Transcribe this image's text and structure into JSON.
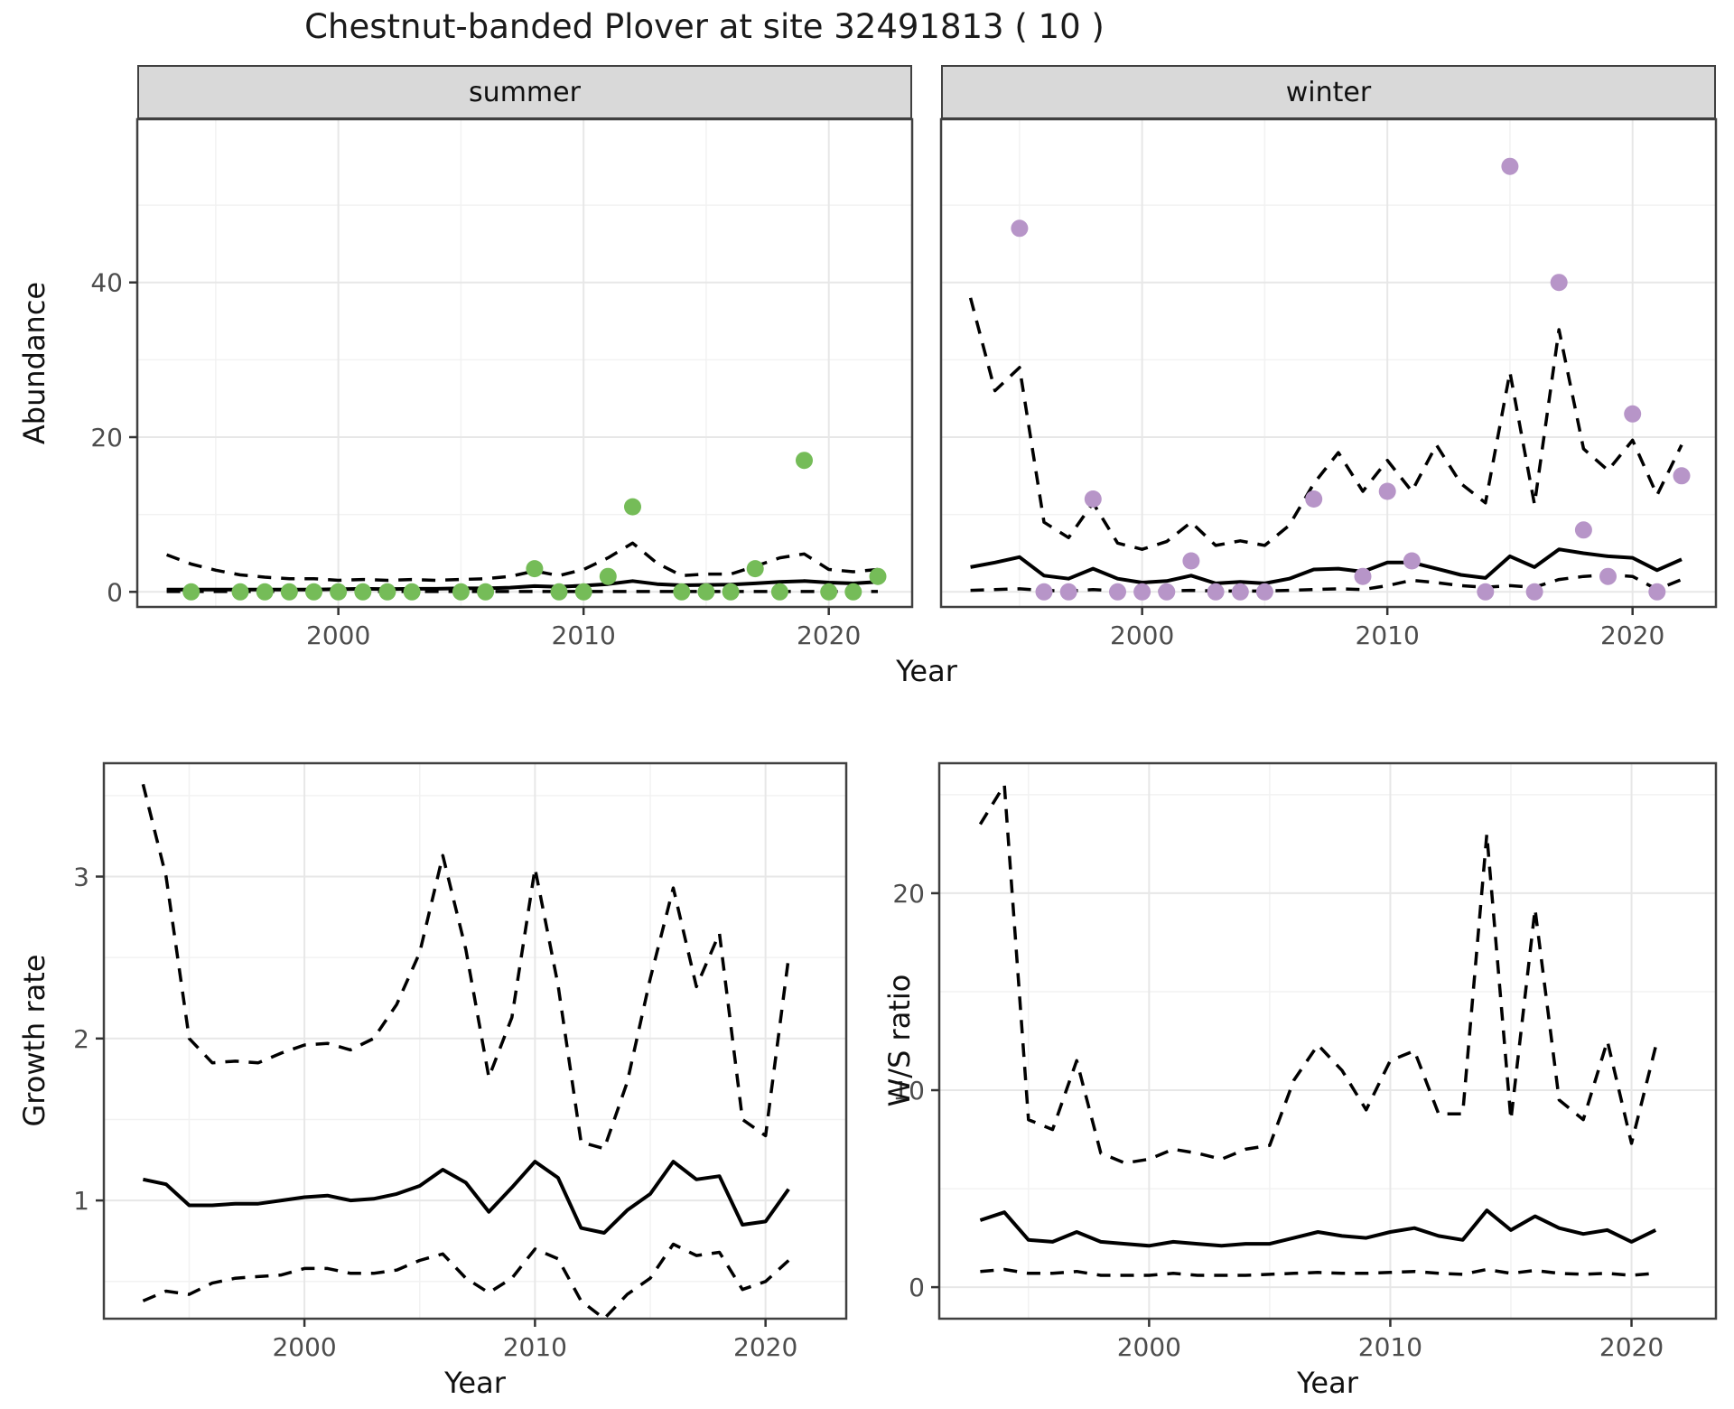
{
  "title": "Chestnut-banded Plover at site 32491813 ( 10 )",
  "facets": {
    "summer_label": "summer",
    "winter_label": "winter"
  },
  "axis_titles": {
    "top_x": "Year",
    "top_y": "Abundance",
    "bottom_left_y": "Growth rate",
    "bottom_left_x": "Year",
    "bottom_right_y": "W/S ratio",
    "bottom_right_x": "Year"
  },
  "colors": {
    "summer_point": "#75BC58",
    "winter_point": "#B795C8",
    "line": "#000000",
    "strip_bg": "#D9D9D9",
    "panel_border": "#404040",
    "grid_major": "#E7E7E7",
    "grid_minor": "#F2F2F2",
    "tick_label": "#4D4D4D",
    "tick_mark": "#333333"
  },
  "chart_data": [
    {
      "id": "abundance-summer",
      "type": "scatter",
      "facet": "summer",
      "xlabel": "Year",
      "ylabel": "Abundance",
      "x_domain": [
        1991.8,
        2023.4
      ],
      "y_domain": [
        -1.95,
        61.1
      ],
      "x_ticks": [
        2000,
        2010,
        2020
      ],
      "x_minor": [
        1995,
        2005,
        2015
      ],
      "y_ticks": [
        0,
        20,
        40
      ],
      "y_minor": [
        10,
        30,
        50
      ],
      "y_tick_labels": [
        "0",
        "20",
        "40"
      ],
      "x_tick_labels": [
        "2000",
        "2010",
        "2020"
      ],
      "y_tick_side": "left",
      "point_color": "#75BC58",
      "years": [
        1993,
        1994,
        1995,
        1996,
        1997,
        1998,
        1999,
        2000,
        2001,
        2002,
        2003,
        2004,
        2005,
        2006,
        2007,
        2008,
        2009,
        2010,
        2011,
        2012,
        2013,
        2014,
        2015,
        2016,
        2017,
        2018,
        2019,
        2020,
        2021,
        2022
      ],
      "mean": [
        0.3,
        0.3,
        0.3,
        0.3,
        0.3,
        0.3,
        0.3,
        0.35,
        0.4,
        0.35,
        0.4,
        0.4,
        0.45,
        0.45,
        0.55,
        0.75,
        0.65,
        0.8,
        1.0,
        1.4,
        1.0,
        0.85,
        0.9,
        0.95,
        1.1,
        1.3,
        1.4,
        1.2,
        1.1,
        1.3
      ],
      "upper": [
        4.8,
        3.6,
        2.8,
        2.2,
        1.9,
        1.7,
        1.7,
        1.5,
        1.6,
        1.5,
        1.6,
        1.5,
        1.6,
        1.7,
        2.0,
        2.7,
        2.1,
        2.9,
        4.4,
        6.3,
        3.7,
        2.1,
        2.3,
        2.3,
        3.3,
        4.4,
        4.9,
        2.9,
        2.6,
        2.9
      ],
      "lower": [
        0.05,
        0.05,
        0.05,
        0.05,
        0.05,
        0.05,
        0.05,
        0.05,
        0.05,
        0.05,
        0.05,
        0.05,
        0.05,
        0.05,
        0.05,
        0.05,
        0.05,
        0.05,
        0.05,
        0.05,
        0.05,
        0.05,
        0.05,
        0.05,
        0.05,
        0.05,
        0.05,
        0.05,
        0.05,
        0.05
      ],
      "points": [
        [
          1994,
          0
        ],
        [
          1996,
          0
        ],
        [
          1997,
          0
        ],
        [
          1998,
          0
        ],
        [
          1999,
          0
        ],
        [
          2000,
          0
        ],
        [
          2001,
          0
        ],
        [
          2002,
          0
        ],
        [
          2003,
          0
        ],
        [
          2005,
          0
        ],
        [
          2006,
          0
        ],
        [
          2008,
          3
        ],
        [
          2009,
          0
        ],
        [
          2010,
          0
        ],
        [
          2011,
          2
        ],
        [
          2012,
          11
        ],
        [
          2014,
          0
        ],
        [
          2015,
          0
        ],
        [
          2016,
          0
        ],
        [
          2017,
          3
        ],
        [
          2018,
          0
        ],
        [
          2019,
          17
        ],
        [
          2020,
          0
        ],
        [
          2021,
          0
        ],
        [
          2022,
          2
        ]
      ]
    },
    {
      "id": "abundance-winter",
      "type": "scatter",
      "facet": "winter",
      "xlabel": "Year",
      "ylabel": "Abundance",
      "x_domain": [
        1991.8,
        2023.4
      ],
      "y_domain": [
        -1.95,
        61.1
      ],
      "x_ticks": [
        2000,
        2010,
        2020
      ],
      "x_minor": [
        1995,
        2005,
        2015
      ],
      "y_ticks": [
        0,
        20,
        40
      ],
      "y_minor": [
        10,
        30,
        50
      ],
      "y_tick_labels": [],
      "x_tick_labels": [
        "2000",
        "2010",
        "2020"
      ],
      "y_tick_side": "none",
      "point_color": "#B795C8",
      "years": [
        1993,
        1994,
        1995,
        1996,
        1997,
        1998,
        1999,
        2000,
        2001,
        2002,
        2003,
        2004,
        2005,
        2006,
        2007,
        2008,
        2009,
        2010,
        2011,
        2012,
        2013,
        2014,
        2015,
        2016,
        2017,
        2018,
        2019,
        2020,
        2021,
        2022
      ],
      "mean": [
        3.2,
        3.8,
        4.5,
        2.1,
        1.7,
        3.0,
        1.7,
        1.2,
        1.4,
        2.1,
        1.1,
        1.3,
        1.1,
        1.7,
        2.9,
        3.0,
        2.6,
        3.8,
        3.8,
        3.0,
        2.2,
        1.8,
        4.6,
        3.2,
        5.5,
        5.0,
        4.6,
        4.4,
        2.8,
        4.2
      ],
      "upper": [
        38,
        26,
        29,
        9,
        7,
        11.5,
        6.3,
        5.5,
        6.5,
        9,
        6,
        6.6,
        6,
        8.6,
        14,
        18,
        13,
        17,
        13,
        19,
        14,
        11.5,
        28.4,
        11.3,
        33.9,
        18.5,
        15.7,
        19.6,
        12.5,
        19
      ],
      "lower": [
        0.2,
        0.3,
        0.4,
        0.2,
        0.1,
        0.3,
        0.1,
        0.1,
        0.1,
        0.2,
        0.1,
        0.1,
        0.1,
        0.2,
        0.3,
        0.4,
        0.3,
        0.8,
        1.5,
        1.2,
        0.8,
        0.6,
        0.8,
        0.6,
        1.6,
        2.0,
        2.2,
        2.0,
        0.3,
        1.6
      ],
      "points": [
        [
          1995,
          47
        ],
        [
          1996,
          0
        ],
        [
          1997,
          0
        ],
        [
          1998,
          12
        ],
        [
          1999,
          0
        ],
        [
          2000,
          0
        ],
        [
          2001,
          0
        ],
        [
          2002,
          4
        ],
        [
          2003,
          0
        ],
        [
          2004,
          0
        ],
        [
          2005,
          0
        ],
        [
          2007,
          12
        ],
        [
          2009,
          2
        ],
        [
          2010,
          13
        ],
        [
          2011,
          4
        ],
        [
          2014,
          0
        ],
        [
          2015,
          55
        ],
        [
          2016,
          0
        ],
        [
          2017,
          40
        ],
        [
          2018,
          8
        ],
        [
          2019,
          2
        ],
        [
          2020,
          23
        ],
        [
          2021,
          0
        ],
        [
          2022,
          15
        ]
      ]
    },
    {
      "id": "growth-rate",
      "type": "line",
      "facet": null,
      "xlabel": "Year",
      "ylabel": "Growth rate",
      "x_domain": [
        1991.3,
        2023.5
      ],
      "y_domain": [
        0.27,
        3.7
      ],
      "x_ticks": [
        2000,
        2010,
        2020
      ],
      "x_minor": [
        1995,
        2005,
        2015
      ],
      "y_ticks": [
        1,
        2,
        3
      ],
      "y_minor": [
        0.5,
        1.5,
        2.5,
        3.5
      ],
      "y_tick_labels": [
        "1",
        "2",
        "3"
      ],
      "x_tick_labels": [
        "2000",
        "2010",
        "2020"
      ],
      "y_tick_side": "left",
      "point_color": null,
      "years": [
        1993,
        1994,
        1995,
        1996,
        1997,
        1998,
        1999,
        2000,
        2001,
        2002,
        2003,
        2004,
        2005,
        2006,
        2007,
        2008,
        2009,
        2010,
        2011,
        2012,
        2013,
        2014,
        2015,
        2016,
        2017,
        2018,
        2019,
        2020,
        2021
      ],
      "mean": [
        1.13,
        1.1,
        0.97,
        0.97,
        0.98,
        0.98,
        1.0,
        1.02,
        1.03,
        1.0,
        1.01,
        1.04,
        1.09,
        1.19,
        1.11,
        0.93,
        1.08,
        1.24,
        1.14,
        0.83,
        0.8,
        0.94,
        1.04,
        1.24,
        1.13,
        1.15,
        0.85,
        0.87,
        1.07
      ],
      "upper": [
        3.57,
        3.0,
        2.0,
        1.85,
        1.86,
        1.85,
        1.91,
        1.96,
        1.97,
        1.93,
        2.0,
        2.21,
        2.53,
        3.13,
        2.55,
        1.76,
        2.13,
        3.05,
        2.33,
        1.36,
        1.32,
        1.73,
        2.37,
        2.93,
        2.32,
        2.65,
        1.5,
        1.4,
        2.5
      ],
      "lower": [
        0.38,
        0.44,
        0.42,
        0.49,
        0.52,
        0.53,
        0.54,
        0.58,
        0.58,
        0.55,
        0.55,
        0.57,
        0.63,
        0.67,
        0.52,
        0.43,
        0.52,
        0.7,
        0.64,
        0.38,
        0.27,
        0.42,
        0.52,
        0.73,
        0.66,
        0.68,
        0.45,
        0.5,
        0.63
      ],
      "points": []
    },
    {
      "id": "ws-ratio",
      "type": "line",
      "facet": null,
      "xlabel": "Year",
      "ylabel": "W/S ratio",
      "x_domain": [
        1991.3,
        2023.5
      ],
      "y_domain": [
        -1.6,
        26.6
      ],
      "x_ticks": [
        2000,
        2010,
        2020
      ],
      "x_minor": [
        1995,
        2005,
        2015
      ],
      "y_ticks": [
        0,
        10,
        20
      ],
      "y_minor": [
        5,
        15,
        25
      ],
      "y_tick_labels": [
        "0",
        "10",
        "20"
      ],
      "x_tick_labels": [
        "2000",
        "2010",
        "2020"
      ],
      "y_tick_side": "left",
      "point_color": null,
      "years": [
        1993,
        1994,
        1995,
        1996,
        1997,
        1998,
        1999,
        2000,
        2001,
        2002,
        2003,
        2004,
        2005,
        2006,
        2007,
        2008,
        2009,
        2010,
        2011,
        2012,
        2013,
        2014,
        2015,
        2016,
        2017,
        2018,
        2019,
        2020,
        2021
      ],
      "mean": [
        3.4,
        3.8,
        2.4,
        2.3,
        2.8,
        2.3,
        2.2,
        2.1,
        2.3,
        2.2,
        2.1,
        2.2,
        2.2,
        2.5,
        2.8,
        2.6,
        2.5,
        2.8,
        3.0,
        2.6,
        2.4,
        3.9,
        2.9,
        3.6,
        3.0,
        2.7,
        2.9,
        2.3,
        2.9
      ],
      "upper": [
        23.5,
        25.5,
        8.5,
        8.0,
        11.5,
        6.8,
        6.3,
        6.5,
        7.0,
        6.8,
        6.5,
        7.0,
        7.2,
        10.5,
        12.3,
        11.0,
        9.0,
        11.5,
        12.0,
        8.8,
        8.8,
        23.0,
        8.5,
        19.2,
        9.5,
        8.5,
        12.5,
        7.3,
        12.2
      ],
      "lower": [
        0.8,
        0.9,
        0.7,
        0.7,
        0.8,
        0.6,
        0.6,
        0.6,
        0.7,
        0.6,
        0.6,
        0.6,
        0.65,
        0.7,
        0.75,
        0.7,
        0.7,
        0.75,
        0.8,
        0.7,
        0.65,
        0.9,
        0.7,
        0.85,
        0.7,
        0.65,
        0.7,
        0.6,
        0.7
      ],
      "points": []
    }
  ]
}
